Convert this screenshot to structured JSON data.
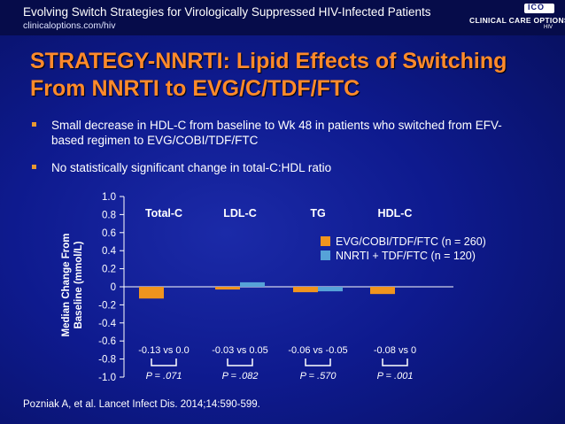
{
  "header": {
    "title": "Evolving Switch Strategies for Virologically Suppressed HIV-Infected Patients",
    "url": "clinicaloptions.com/hiv",
    "logo_text": "CLINICAL CARE OPTIONS",
    "logo_badge": "ICO",
    "logo_sub": "HIV"
  },
  "slide": {
    "title": "STRATEGY-NNRTI: Lipid Effects of Switching From NNRTI to EVG/C/TDF/FTC",
    "bullets": [
      "Small decrease in HDL-C from baseline to Wk 48 in patients who switched from EFV-based regimen to EVG/COBI/TDF/FTC",
      "No statistically significant change in total-C:HDL ratio"
    ],
    "citation": "Pozniak A, et al. Lancet Infect Dis. 2014;14:590-599."
  },
  "colors": {
    "accent": "#ff8a2b",
    "series1": "#f0941e",
    "series2": "#56a2d8",
    "background": "#0e1a8e"
  },
  "chart_data": {
    "type": "bar",
    "categories": [
      "Total-C",
      "LDL-C",
      "TG",
      "HDL-C"
    ],
    "series": [
      {
        "name": "EVG/COBI/TDF/FTC (n = 260)",
        "values": [
          -0.13,
          -0.03,
          -0.06,
          -0.08
        ]
      },
      {
        "name": "NNRTI + TDF/FTC (n = 120)",
        "values": [
          0.0,
          0.05,
          -0.05,
          0.0
        ]
      }
    ],
    "ylabel": "Median Change From Baseline (mmol/L)",
    "ylim": [
      -1.0,
      1.0
    ],
    "yticks": [
      "1.0",
      "0.8",
      "0.6",
      "0.4",
      "0.2",
      "0",
      "-0.2",
      "-0.4",
      "-0.6",
      "-0.8",
      "-1.0"
    ],
    "legend_position": "right",
    "annotations": [
      "-0.13 vs 0.0",
      "-0.03 vs 0.05",
      "-0.06 vs -0.05",
      "-0.08 vs 0"
    ],
    "p_values": [
      "P = .071",
      "P = .082",
      "P = .570",
      "P = .001"
    ]
  }
}
